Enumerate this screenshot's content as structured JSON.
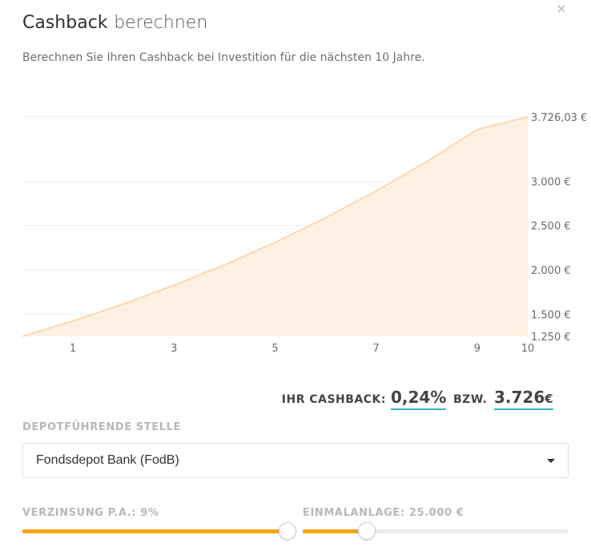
{
  "modal": {
    "title_strong": "Cashback",
    "title_light": "berechnen",
    "subtitle": "Berechnen Sie Ihren Cashback bei Investition für die nächsten 10 Jahre.",
    "close_icon": "×"
  },
  "chart_data": {
    "type": "area",
    "x": [
      0,
      1,
      2,
      3,
      4,
      5,
      6,
      7,
      8,
      9,
      10
    ],
    "values": [
      1250,
      1424,
      1616,
      1826,
      2057,
      2310,
      2587,
      2890,
      3222,
      3585,
      3726.03
    ],
    "x_ticks": [
      "1",
      "3",
      "5",
      "7",
      "9",
      "10"
    ],
    "x_tick_values": [
      1,
      3,
      5,
      7,
      9,
      10
    ],
    "y_ticks": [
      "1.250 €",
      "1.500 €",
      "2.000 €",
      "2.500 €",
      "3.000 €",
      "3.726,03 €"
    ],
    "y_tick_values": [
      1250,
      1500,
      2000,
      2500,
      3000,
      3726.03
    ],
    "ylim": [
      1250,
      3726.03
    ],
    "xlim": [
      0,
      10
    ],
    "grid": true,
    "fill_color": "#fdf1e3",
    "line_color": "#fcd9ad"
  },
  "cashback": {
    "label": "IHR CASHBACK:",
    "percent": "0,24%",
    "bzw": "BZW.",
    "amount": "3.726",
    "currency": "€",
    "accent": "#34bcc7"
  },
  "depot": {
    "label": "DEPOTFÜHRENDE STELLE",
    "selected": "Fondsdepot Bank (FodB)"
  },
  "rate": {
    "label": "VERZINSUNG P.A.: 9%",
    "fraction": 1.0
  },
  "investment": {
    "label": "EINMALANLAGE: 25.000 €",
    "fraction": 0.24
  },
  "colors": {
    "slider_fill": "#f7a31c"
  }
}
